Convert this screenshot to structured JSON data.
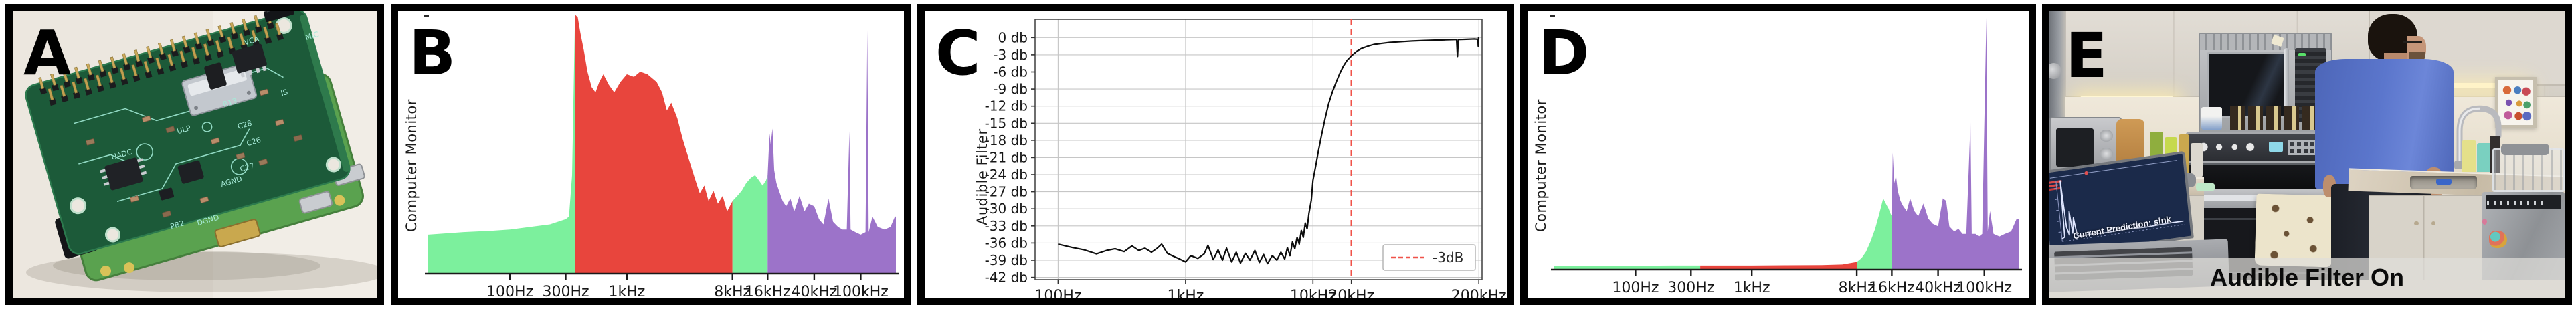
{
  "colors": {
    "green": "#7cf09d",
    "red": "#e8453d",
    "purple": "#9c73c9",
    "axis": "#1a1a1a",
    "grid": "#c6c6c6",
    "dashed_red": "#f0534a",
    "curve": "#0d0d0d"
  },
  "panels": {
    "a": {
      "label": "A",
      "board_labels": [
        "UADC",
        "ULP",
        "VCA",
        "R13",
        "C28",
        "C26",
        "C27",
        "AGND",
        "DGND",
        "PB2",
        "MIC",
        "IS"
      ]
    },
    "b": {
      "label": "B",
      "ylabel": "Computer Monitor"
    },
    "c": {
      "label": "C",
      "ylabel": "Audible Filter",
      "legend": "-3dB"
    },
    "d": {
      "label": "D",
      "ylabel": "Computer Monitor"
    },
    "e": {
      "label": "E",
      "caption": "Audible Filter On",
      "laptop_prediction": "Current Prediction: sink"
    }
  },
  "chart_data": [
    {
      "panel": "B",
      "type": "area",
      "ylabel": "Computer Monitor",
      "x_scale": "log",
      "x_range_hz": [
        20,
        200000
      ],
      "xtick_labels": [
        "100Hz",
        "300Hz",
        "1kHz",
        "8kHz",
        "16kHz",
        "40kHz",
        "100kHz"
      ],
      "xtick_hz": [
        100,
        300,
        1000,
        8000,
        16000,
        40000,
        100000
      ],
      "bands": [
        {
          "color_key": "green",
          "from_hz": 20,
          "to_hz": 360
        },
        {
          "color_key": "red",
          "from_hz": 360,
          "to_hz": 8000
        },
        {
          "color_key": "green",
          "from_hz": 8000,
          "to_hz": 16000
        },
        {
          "color_key": "purple",
          "from_hz": 16000,
          "to_hz": 200000
        }
      ],
      "points_hz_amp": [
        [
          20,
          0.15
        ],
        [
          40,
          0.16
        ],
        [
          70,
          0.165
        ],
        [
          100,
          0.17
        ],
        [
          150,
          0.18
        ],
        [
          220,
          0.19
        ],
        [
          300,
          0.21
        ],
        [
          320,
          0.22
        ],
        [
          340,
          0.38
        ],
        [
          360,
          1.0
        ],
        [
          380,
          0.99
        ],
        [
          400,
          0.93
        ],
        [
          430,
          0.86
        ],
        [
          460,
          0.78
        ],
        [
          500,
          0.72
        ],
        [
          540,
          0.7
        ],
        [
          580,
          0.74
        ],
        [
          630,
          0.77
        ],
        [
          700,
          0.73
        ],
        [
          780,
          0.7
        ],
        [
          880,
          0.74
        ],
        [
          1000,
          0.77
        ],
        [
          1150,
          0.76
        ],
        [
          1300,
          0.78
        ],
        [
          1500,
          0.77
        ],
        [
          1800,
          0.74
        ],
        [
          2000,
          0.7
        ],
        [
          2200,
          0.63
        ],
        [
          2400,
          0.66
        ],
        [
          2700,
          0.6
        ],
        [
          3000,
          0.52
        ],
        [
          3400,
          0.44
        ],
        [
          3800,
          0.37
        ],
        [
          4200,
          0.31
        ],
        [
          4600,
          0.34
        ],
        [
          5000,
          0.28
        ],
        [
          5500,
          0.32
        ],
        [
          6000,
          0.27
        ],
        [
          6600,
          0.3
        ],
        [
          7200,
          0.24
        ],
        [
          8000,
          0.28
        ],
        [
          8800,
          0.3
        ],
        [
          9600,
          0.32
        ],
        [
          10500,
          0.35
        ],
        [
          11500,
          0.37
        ],
        [
          12500,
          0.38
        ],
        [
          13500,
          0.36
        ],
        [
          14500,
          0.34
        ],
        [
          15500,
          0.36
        ],
        [
          16000,
          0.38
        ],
        [
          16600,
          0.54
        ],
        [
          17000,
          0.5
        ],
        [
          17600,
          0.56
        ],
        [
          18200,
          0.4
        ],
        [
          19000,
          0.35
        ],
        [
          20000,
          0.32
        ],
        [
          21500,
          0.28
        ],
        [
          23000,
          0.26
        ],
        [
          25000,
          0.29
        ],
        [
          27000,
          0.24
        ],
        [
          30000,
          0.3
        ],
        [
          33000,
          0.24
        ],
        [
          36000,
          0.27
        ],
        [
          40000,
          0.26
        ],
        [
          44000,
          0.21
        ],
        [
          48000,
          0.19
        ],
        [
          53000,
          0.29
        ],
        [
          58000,
          0.2
        ],
        [
          64000,
          0.18
        ],
        [
          70000,
          0.17
        ],
        [
          76000,
          0.17
        ],
        [
          80000,
          0.55
        ],
        [
          82000,
          0.17
        ],
        [
          90000,
          0.16
        ],
        [
          100000,
          0.15
        ],
        [
          110000,
          0.16
        ],
        [
          114000,
          0.94
        ],
        [
          117000,
          0.16
        ],
        [
          126000,
          0.22
        ],
        [
          140000,
          0.18
        ],
        [
          160000,
          0.17
        ],
        [
          180000,
          0.18
        ],
        [
          196000,
          0.22
        ]
      ]
    },
    {
      "panel": "C",
      "type": "line",
      "ylabel": "Audible Filter",
      "x_scale": "log",
      "x_range_hz": [
        66,
        212000
      ],
      "xtick_labels": [
        "100Hz",
        "1kHz",
        "10kHz",
        "20kHz",
        "200kHz"
      ],
      "xtick_hz": [
        100,
        1000,
        10000,
        20000,
        200000
      ],
      "grid_x_hz": [
        100,
        1000,
        10000,
        200000
      ],
      "ytick_labels": [
        "0 db",
        "-3 db",
        "-6 db",
        "-9 db",
        "-12 db",
        "-15 db",
        "-18 db",
        "-21 db",
        "-24 db",
        "-27 db",
        "-30 db",
        "-33 db",
        "-36 db",
        "-39 db",
        "-42 db"
      ],
      "ytick_db": [
        0,
        -3,
        -6,
        -9,
        -12,
        -15,
        -18,
        -21,
        -24,
        -27,
        -30,
        -33,
        -36,
        -39,
        -42
      ],
      "ylim_db": [
        -42.4,
        3.2
      ],
      "grid": true,
      "cutoff_line_hz": 20000,
      "legend_label": "-3dB",
      "points_hz_db": [
        [
          100,
          -36.2
        ],
        [
          130,
          -36.8
        ],
        [
          160,
          -37.2
        ],
        [
          200,
          -37.9
        ],
        [
          240,
          -37.3
        ],
        [
          280,
          -37.0
        ],
        [
          330,
          -37.5
        ],
        [
          380,
          -36.5
        ],
        [
          430,
          -37.3
        ],
        [
          480,
          -36.9
        ],
        [
          540,
          -37.6
        ],
        [
          600,
          -36.9
        ],
        [
          650,
          -36.2
        ],
        [
          720,
          -37.8
        ],
        [
          800,
          -38.3
        ],
        [
          900,
          -38.8
        ],
        [
          1000,
          -39.3
        ],
        [
          1100,
          -38.2
        ],
        [
          1250,
          -38.7
        ],
        [
          1400,
          -37.9
        ],
        [
          1500,
          -36.4
        ],
        [
          1650,
          -38.9
        ],
        [
          1800,
          -37.2
        ],
        [
          1950,
          -39.0
        ],
        [
          2100,
          -36.9
        ],
        [
          2300,
          -39.3
        ],
        [
          2500,
          -37.6
        ],
        [
          2700,
          -39.5
        ],
        [
          2950,
          -37.8
        ],
        [
          3200,
          -39.0
        ],
        [
          3500,
          -37.3
        ],
        [
          3800,
          -39.4
        ],
        [
          4100,
          -38.0
        ],
        [
          4400,
          -39.6
        ],
        [
          4800,
          -38.2
        ],
        [
          5200,
          -39.0
        ],
        [
          5600,
          -37.6
        ],
        [
          6000,
          -38.8
        ],
        [
          6300,
          -36.8
        ],
        [
          6600,
          -38.2
        ],
        [
          6900,
          -35.8
        ],
        [
          7200,
          -37.0
        ],
        [
          7500,
          -35.0
        ],
        [
          7800,
          -36.2
        ],
        [
          8100,
          -33.8
        ],
        [
          8400,
          -35.0
        ],
        [
          8700,
          -32.5
        ],
        [
          9000,
          -33.5
        ],
        [
          9300,
          -30.8
        ],
        [
          9700,
          -28.5
        ],
        [
          10000,
          -25.0
        ],
        [
          10500,
          -22.5
        ],
        [
          11000,
          -20.0
        ],
        [
          11700,
          -17.0
        ],
        [
          12500,
          -14.0
        ],
        [
          13300,
          -11.5
        ],
        [
          14200,
          -9.5
        ],
        [
          15200,
          -7.8
        ],
        [
          16200,
          -6.3
        ],
        [
          17300,
          -5.0
        ],
        [
          18500,
          -4.0
        ],
        [
          20000,
          -3.2
        ],
        [
          22000,
          -2.4
        ],
        [
          24000,
          -1.9
        ],
        [
          27000,
          -1.5
        ],
        [
          30000,
          -1.2
        ],
        [
          35000,
          -1.0
        ],
        [
          40000,
          -0.85
        ],
        [
          50000,
          -0.7
        ],
        [
          60000,
          -0.6
        ],
        [
          75000,
          -0.5
        ],
        [
          90000,
          -0.45
        ],
        [
          110000,
          -0.4
        ],
        [
          130000,
          -0.35
        ],
        [
          134000,
          -0.35
        ],
        [
          136000,
          -3.3
        ],
        [
          138000,
          -0.35
        ],
        [
          160000,
          -0.3
        ],
        [
          185000,
          -0.25
        ],
        [
          197000,
          -0.3
        ],
        [
          198000,
          -1.5
        ],
        [
          199000,
          0.0
        ],
        [
          200000,
          -0.3
        ]
      ]
    },
    {
      "panel": "D",
      "type": "area",
      "ylabel": "Computer Monitor",
      "x_scale": "log",
      "x_range_hz": [
        20,
        200000
      ],
      "xtick_labels": [
        "100Hz",
        "300Hz",
        "1kHz",
        "8kHz",
        "16kHz",
        "40kHz",
        "100kHz"
      ],
      "xtick_hz": [
        100,
        300,
        1000,
        8000,
        16000,
        40000,
        100000
      ],
      "bands": [
        {
          "color_key": "green",
          "from_hz": 20,
          "to_hz": 360
        },
        {
          "color_key": "red",
          "from_hz": 360,
          "to_hz": 8000
        },
        {
          "color_key": "green",
          "from_hz": 8000,
          "to_hz": 16000
        },
        {
          "color_key": "purple",
          "from_hz": 16000,
          "to_hz": 200000
        }
      ],
      "points_hz_amp": [
        [
          20,
          0.015
        ],
        [
          100,
          0.015
        ],
        [
          200,
          0.016
        ],
        [
          360,
          0.016
        ],
        [
          500,
          0.016
        ],
        [
          1000,
          0.016
        ],
        [
          2000,
          0.017
        ],
        [
          4000,
          0.018
        ],
        [
          6000,
          0.02
        ],
        [
          8000,
          0.03
        ],
        [
          8800,
          0.045
        ],
        [
          9600,
          0.07
        ],
        [
          10500,
          0.11
        ],
        [
          11500,
          0.16
        ],
        [
          12500,
          0.22
        ],
        [
          13500,
          0.28
        ],
        [
          14200,
          0.26
        ],
        [
          15000,
          0.24
        ],
        [
          15600,
          0.22
        ],
        [
          16000,
          0.21
        ],
        [
          16300,
          0.46
        ],
        [
          16800,
          0.34
        ],
        [
          17400,
          0.37
        ],
        [
          18000,
          0.31
        ],
        [
          19000,
          0.27
        ],
        [
          20000,
          0.25
        ],
        [
          21500,
          0.23
        ],
        [
          23000,
          0.28
        ],
        [
          25000,
          0.23
        ],
        [
          27000,
          0.21
        ],
        [
          30000,
          0.26
        ],
        [
          33000,
          0.2
        ],
        [
          36000,
          0.18
        ],
        [
          40000,
          0.17
        ],
        [
          44000,
          0.28
        ],
        [
          47000,
          0.27
        ],
        [
          50000,
          0.17
        ],
        [
          55000,
          0.15
        ],
        [
          60000,
          0.16
        ],
        [
          65000,
          0.14
        ],
        [
          70000,
          0.14
        ],
        [
          76000,
          0.58
        ],
        [
          78000,
          0.14
        ],
        [
          84000,
          0.14
        ],
        [
          90000,
          0.13
        ],
        [
          96000,
          0.14
        ],
        [
          104000,
          0.99
        ],
        [
          107000,
          0.15
        ],
        [
          112000,
          0.23
        ],
        [
          120000,
          0.14
        ],
        [
          135000,
          0.13
        ],
        [
          150000,
          0.14
        ],
        [
          170000,
          0.15
        ],
        [
          190000,
          0.2
        ]
      ]
    }
  ]
}
